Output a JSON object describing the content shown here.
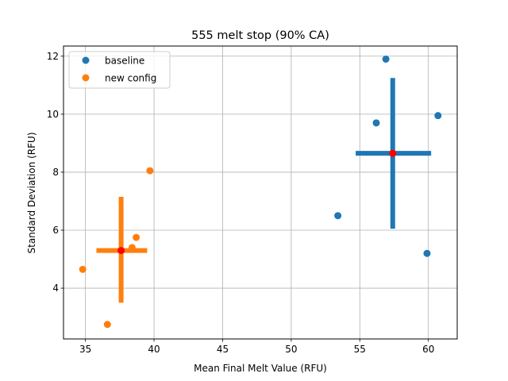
{
  "chart_data": {
    "type": "scatter",
    "title": "555 melt stop (90% CA)",
    "xlabel": "Mean Final Melt Value (RFU)",
    "ylabel": "Standard Deviation (RFU)",
    "xlim": [
      33.4,
      62.1
    ],
    "ylim": [
      2.25,
      12.35
    ],
    "xticks": [
      35,
      40,
      45,
      50,
      55,
      60
    ],
    "yticks": [
      4,
      6,
      8,
      10,
      12
    ],
    "grid": true,
    "legend_position": "top-left",
    "series": [
      {
        "name": "baseline",
        "color": "#1f77b4",
        "points": [
          {
            "x": 56.9,
            "y": 11.9
          },
          {
            "x": 56.2,
            "y": 9.7
          },
          {
            "x": 60.7,
            "y": 9.95
          },
          {
            "x": 53.4,
            "y": 6.5
          },
          {
            "x": 59.9,
            "y": 5.2
          }
        ],
        "mean": {
          "x": 57.4,
          "y": 8.65
        },
        "error_x": [
          54.7,
          60.2
        ],
        "error_y": [
          6.05,
          11.25
        ]
      },
      {
        "name": "new config",
        "color": "#ff7f0e",
        "points": [
          {
            "x": 39.7,
            "y": 8.05
          },
          {
            "x": 38.7,
            "y": 5.75
          },
          {
            "x": 38.4,
            "y": 5.4
          },
          {
            "x": 34.8,
            "y": 4.65
          },
          {
            "x": 36.6,
            "y": 2.75
          }
        ],
        "mean": {
          "x": 37.6,
          "y": 5.3
        },
        "error_x": [
          35.8,
          39.5
        ],
        "error_y": [
          3.5,
          7.15
        ]
      }
    ],
    "mean_marker_color": "#ff0000"
  }
}
